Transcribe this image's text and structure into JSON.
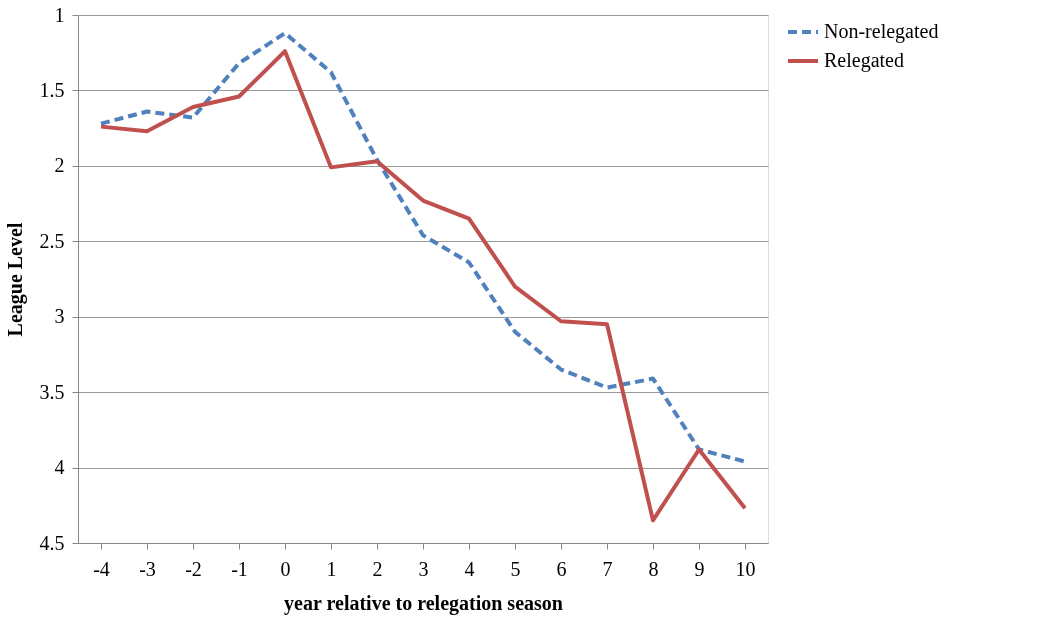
{
  "chart_data": {
    "type": "line",
    "xlabel": "year relative to relegation season",
    "ylabel": "League Level",
    "categories": [
      "-4",
      "-3",
      "-2",
      "-1",
      "0",
      "1",
      "2",
      "3",
      "4",
      "5",
      "6",
      "7",
      "8",
      "9",
      "10"
    ],
    "ylim": [
      4.5,
      1
    ],
    "yticks": [
      {
        "value": 1,
        "label": "1"
      },
      1.5,
      {
        "value": 2,
        "label": "2"
      },
      2.5,
      {
        "value": 3,
        "label": "3"
      },
      3.5,
      {
        "value": 4,
        "label": "4"
      },
      4.5
    ],
    "grid": "y",
    "legend": "right",
    "marker": "none",
    "series": [
      {
        "name": "Non-relegated",
        "color": "#4f81bd",
        "line_style": "dashed",
        "values": [
          1.72,
          1.64,
          1.68,
          1.32,
          1.12,
          1.38,
          1.96,
          2.46,
          2.64,
          3.1,
          3.35,
          3.47,
          3.41,
          3.88,
          3.96
        ]
      },
      {
        "name": "Relegated",
        "color": "#c0504d",
        "line_style": "solid",
        "values": [
          1.74,
          1.77,
          1.61,
          1.54,
          1.24,
          2.01,
          1.97,
          2.23,
          2.35,
          2.8,
          3.03,
          3.05,
          4.35,
          3.88,
          4.27
        ]
      }
    ]
  }
}
